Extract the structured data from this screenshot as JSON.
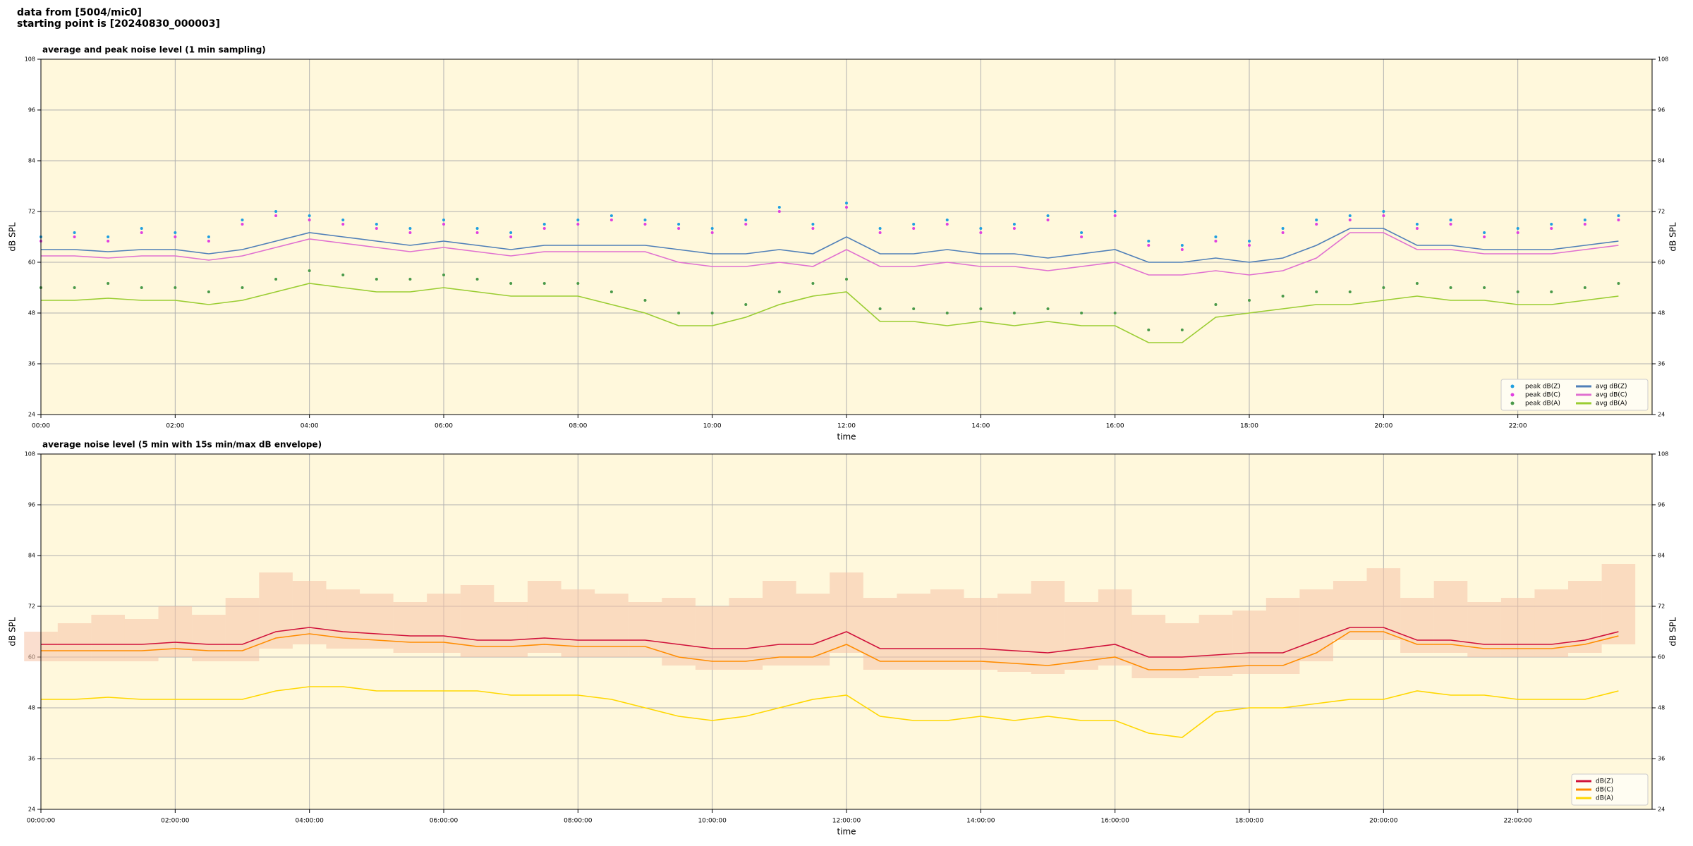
{
  "header": {
    "line1": "data from [5004/mic0]",
    "line2": "starting point is [20240830_000003]"
  },
  "chart_data": [
    {
      "type": "line",
      "title": "average and peak noise level (1 min sampling)",
      "xlabel": "time",
      "ylabel": "dB SPL",
      "y2label": "dB SPL",
      "xlim": [
        0,
        24
      ],
      "ylim": [
        24,
        108
      ],
      "y2lim": [
        24,
        108
      ],
      "xticks": [
        {
          "value": 0,
          "label": "00:00"
        },
        {
          "value": 2,
          "label": "02:00"
        },
        {
          "value": 4,
          "label": "04:00"
        },
        {
          "value": 6,
          "label": "06:00"
        },
        {
          "value": 8,
          "label": "08:00"
        },
        {
          "value": 10,
          "label": "10:00"
        },
        {
          "value": 12,
          "label": "12:00"
        },
        {
          "value": 14,
          "label": "14:00"
        },
        {
          "value": 16,
          "label": "16:00"
        },
        {
          "value": 18,
          "label": "18:00"
        },
        {
          "value": 20,
          "label": "20:00"
        },
        {
          "value": 22,
          "label": "22:00"
        }
      ],
      "yticks": [
        24,
        36,
        48,
        60,
        72,
        84,
        96,
        108
      ],
      "y2ticks": [
        24,
        36,
        48,
        60,
        72,
        84,
        96,
        108
      ],
      "grid": true,
      "background": "#fff8dc",
      "legend": "lower right",
      "legend_columns": 2,
      "x": [
        0,
        0.5,
        1,
        1.5,
        2,
        2.5,
        3,
        3.5,
        4,
        4.5,
        5,
        5.5,
        6,
        6.5,
        7,
        7.5,
        8,
        8.5,
        9,
        9.5,
        10,
        10.5,
        11,
        11.5,
        12,
        12.5,
        13,
        13.5,
        14,
        14.5,
        15,
        15.5,
        16,
        16.5,
        17,
        17.5,
        18,
        18.5,
        19,
        19.5,
        20,
        20.5,
        21,
        21.5,
        22,
        22.5,
        23,
        23.5
      ],
      "series": [
        {
          "name": "peak dB(Z)",
          "style": "points",
          "color": "#1f9fe0",
          "values": [
            66,
            67,
            66,
            68,
            67,
            66,
            70,
            72,
            71,
            70,
            69,
            68,
            70,
            68,
            67,
            69,
            70,
            71,
            70,
            69,
            68,
            70,
            73,
            69,
            74,
            68,
            69,
            70,
            68,
            69,
            71,
            67,
            72,
            65,
            64,
            66,
            65,
            68,
            70,
            71,
            72,
            69,
            70,
            67,
            68,
            69,
            70,
            71
          ]
        },
        {
          "name": "peak dB(C)",
          "style": "points",
          "color": "#e040e0",
          "values": [
            65,
            66,
            65,
            67,
            66,
            65,
            69,
            71,
            70,
            69,
            68,
            67,
            69,
            67,
            66,
            68,
            69,
            70,
            69,
            68,
            67,
            69,
            72,
            68,
            73,
            67,
            68,
            69,
            67,
            68,
            70,
            66,
            71,
            64,
            63,
            65,
            64,
            67,
            69,
            70,
            71,
            68,
            69,
            66,
            67,
            68,
            69,
            70
          ]
        },
        {
          "name": "peak dB(A)",
          "style": "points",
          "color": "#4a9a4a",
          "values": [
            54,
            54,
            55,
            54,
            54,
            53,
            54,
            56,
            58,
            57,
            56,
            56,
            57,
            56,
            55,
            55,
            55,
            53,
            51,
            48,
            48,
            50,
            53,
            55,
            56,
            49,
            49,
            48,
            49,
            48,
            49,
            48,
            48,
            44,
            44,
            50,
            51,
            52,
            53,
            53,
            54,
            55,
            54,
            54,
            53,
            53,
            54,
            55
          ]
        },
        {
          "name": "avg dB(Z)",
          "style": "line",
          "color": "#4f7fb8",
          "values": [
            63,
            63,
            62.5,
            63,
            63,
            62,
            63,
            65,
            67,
            66,
            65,
            64,
            65,
            64,
            63,
            64,
            64,
            64,
            64,
            63,
            62,
            62,
            63,
            62,
            66,
            62,
            62,
            63,
            62,
            62,
            61,
            62,
            63,
            60,
            60,
            61,
            60,
            61,
            64,
            68,
            68,
            64,
            64,
            63,
            63,
            63,
            64,
            65
          ]
        },
        {
          "name": "avg dB(C)",
          "style": "line",
          "color": "#e070d0",
          "values": [
            61.5,
            61.5,
            61,
            61.5,
            61.5,
            60.5,
            61.5,
            63.5,
            65.5,
            64.5,
            63.5,
            62.5,
            63.5,
            62.5,
            61.5,
            62.5,
            62.5,
            62.5,
            62.5,
            60,
            59,
            59,
            60,
            59,
            63,
            59,
            59,
            60,
            59,
            59,
            58,
            59,
            60,
            57,
            57,
            58,
            57,
            58,
            61,
            67,
            67,
            63,
            63,
            62,
            62,
            62,
            63,
            64
          ]
        },
        {
          "name": "avg dB(A)",
          "style": "line",
          "color": "#9acd32",
          "values": [
            51,
            51,
            51.5,
            51,
            51,
            50,
            51,
            53,
            55,
            54,
            53,
            53,
            54,
            53,
            52,
            52,
            52,
            50,
            48,
            45,
            45,
            47,
            50,
            52,
            53,
            46,
            46,
            45,
            46,
            45,
            46,
            45,
            45,
            41,
            41,
            47,
            48,
            49,
            50,
            50,
            51,
            52,
            51,
            51,
            50,
            50,
            51,
            52
          ]
        }
      ]
    },
    {
      "type": "line",
      "title": "average noise level (5 min with 15s min/max dB envelope)",
      "xlabel": "time",
      "ylabel": "dB SPL",
      "y2label": "dB SPL",
      "xlim": [
        0,
        24
      ],
      "ylim": [
        24,
        108
      ],
      "y2lim": [
        24,
        108
      ],
      "xticks": [
        {
          "value": 0,
          "label": "00:00:00"
        },
        {
          "value": 2,
          "label": "02:00:00"
        },
        {
          "value": 4,
          "label": "04:00:00"
        },
        {
          "value": 6,
          "label": "06:00:00"
        },
        {
          "value": 8,
          "label": "08:00:00"
        },
        {
          "value": 10,
          "label": "10:00:00"
        },
        {
          "value": 12,
          "label": "12:00:00"
        },
        {
          "value": 14,
          "label": "14:00:00"
        },
        {
          "value": 16,
          "label": "16:00:00"
        },
        {
          "value": 18,
          "label": "18:00:00"
        },
        {
          "value": 20,
          "label": "20:00:00"
        },
        {
          "value": 22,
          "label": "22:00:00"
        }
      ],
      "yticks": [
        24,
        36,
        48,
        60,
        72,
        84,
        96,
        108
      ],
      "y2ticks": [
        24,
        36,
        48,
        60,
        72,
        84,
        96,
        108
      ],
      "grid": true,
      "background": "#fff8dc",
      "legend": "lower right",
      "legend_columns": 1,
      "x": [
        0,
        0.5,
        1,
        1.5,
        2,
        2.5,
        3,
        3.5,
        4,
        4.5,
        5,
        5.5,
        6,
        6.5,
        7,
        7.5,
        8,
        8.5,
        9,
        9.5,
        10,
        10.5,
        11,
        11.5,
        12,
        12.5,
        13,
        13.5,
        14,
        14.5,
        15,
        15.5,
        16,
        16.5,
        17,
        17.5,
        18,
        18.5,
        19,
        19.5,
        20,
        20.5,
        21,
        21.5,
        22,
        22.5,
        23,
        23.5
      ],
      "envelope": {
        "color": "#f6c3a8",
        "low": [
          59,
          59,
          59,
          59,
          60,
          59,
          59,
          62,
          63,
          62,
          62,
          61,
          61,
          60,
          60,
          61,
          60,
          60,
          60,
          58,
          57,
          57,
          58,
          58,
          61,
          57,
          57,
          57,
          57,
          56.5,
          56,
          57,
          58,
          55,
          55,
          55.5,
          56,
          56,
          59,
          64,
          64,
          61,
          61,
          60,
          60,
          60,
          61,
          63
        ],
        "high": [
          66,
          68,
          70,
          69,
          72,
          70,
          74,
          80,
          78,
          76,
          75,
          73,
          75,
          77,
          73,
          78,
          76,
          75,
          73,
          74,
          72,
          74,
          78,
          75,
          80,
          74,
          75,
          76,
          74,
          75,
          78,
          73,
          76,
          70,
          68,
          70,
          71,
          74,
          76,
          78,
          81,
          74,
          78,
          73,
          74,
          76,
          78,
          82
        ]
      },
      "series": [
        {
          "name": "dB(Z)",
          "style": "line",
          "color": "#d0103a",
          "values": [
            63,
            63,
            63,
            63,
            63.5,
            63,
            63,
            66,
            67,
            66,
            65.5,
            65,
            65,
            64,
            64,
            64.5,
            64,
            64,
            64,
            63,
            62,
            62,
            63,
            63,
            66,
            62,
            62,
            62,
            62,
            61.5,
            61,
            62,
            63,
            60,
            60,
            60.5,
            61,
            61,
            64,
            67,
            67,
            64,
            64,
            63,
            63,
            63,
            64,
            66
          ]
        },
        {
          "name": "dB(C)",
          "style": "line",
          "color": "#ff8c00",
          "values": [
            61.5,
            61.5,
            61.5,
            61.5,
            62,
            61.5,
            61.5,
            64.5,
            65.5,
            64.5,
            64,
            63.5,
            63.5,
            62.5,
            62.5,
            63,
            62.5,
            62.5,
            62.5,
            60,
            59,
            59,
            60,
            60,
            63,
            59,
            59,
            59,
            59,
            58.5,
            58,
            59,
            60,
            57,
            57,
            57.5,
            58,
            58,
            61,
            66,
            66,
            63,
            63,
            62,
            62,
            62,
            63,
            65
          ]
        },
        {
          "name": "dB(A)",
          "style": "line",
          "color": "#ffd700",
          "values": [
            50,
            50,
            50.5,
            50,
            50,
            50,
            50,
            52,
            53,
            53,
            52,
            52,
            52,
            52,
            51,
            51,
            51,
            50,
            48,
            46,
            45,
            46,
            48,
            50,
            51,
            46,
            45,
            45,
            46,
            45,
            46,
            45,
            45,
            42,
            41,
            47,
            48,
            48,
            49,
            50,
            50,
            52,
            51,
            51,
            50,
            50,
            50,
            52
          ]
        }
      ]
    }
  ]
}
